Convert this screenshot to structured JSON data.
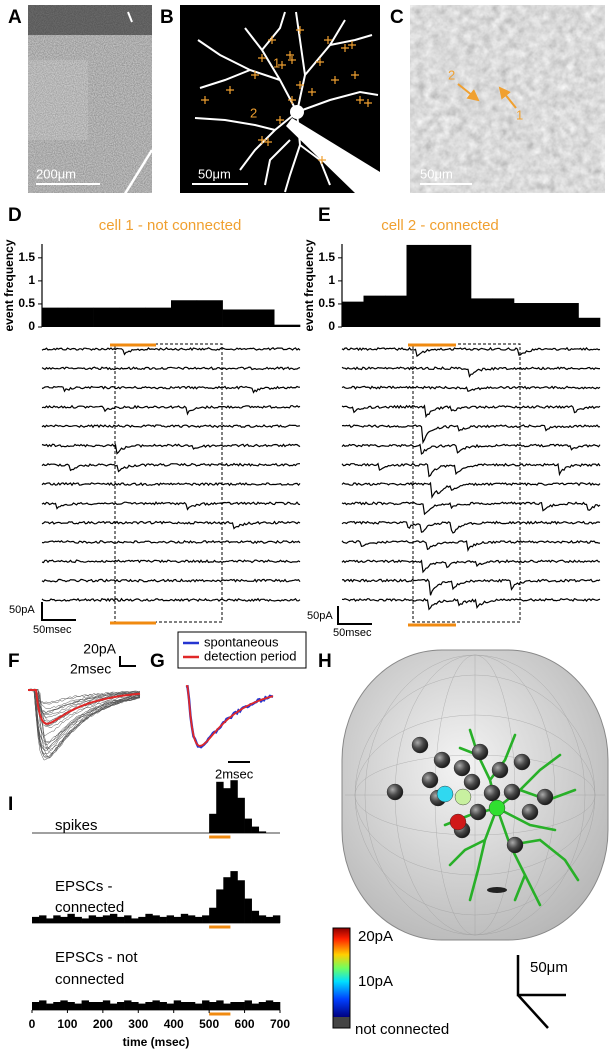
{
  "panels": {
    "A": {
      "letter": "A",
      "scale_bar": "200μm"
    },
    "B": {
      "letter": "B",
      "scale_bar": "50μm",
      "cell_labels": [
        "1",
        "2"
      ]
    },
    "C": {
      "letter": "C",
      "scale_bar": "50μm",
      "cell_labels": [
        "2",
        "1"
      ]
    },
    "D": {
      "letter": "D",
      "scale_bar": [
        "50pA",
        "50msec"
      ]
    },
    "E": {
      "letter": "E",
      "scale_bar": [
        "50pA",
        "50msec"
      ]
    },
    "F": {
      "letter": "F",
      "scale_bar": [
        "20pA",
        "2msec"
      ]
    },
    "G": {
      "letter": "G",
      "legend": [
        {
          "name": "spontaneous",
          "color": "#2535d0"
        },
        {
          "name": "detection period",
          "color": "#e02828"
        }
      ],
      "scale_bar": "2msec"
    },
    "H": {
      "letter": "H",
      "colorbar": [
        "20pA",
        "10pA",
        "not connected"
      ],
      "scale_bar": "50μm"
    },
    "I": {
      "letter": "I"
    }
  },
  "chart_data": [
    {
      "type": "bar",
      "title": "cell 1 - not connected",
      "ylabel": "event frequency",
      "categories": [
        null,
        null,
        null,
        null,
        null,
        null,
        null,
        null,
        null,
        null
      ],
      "values": [
        0.42,
        0.42,
        0.42,
        0.42,
        0.42,
        0.58,
        0.58,
        0.38,
        0.38,
        0.05
      ],
      "color": "#000000",
      "ylim": [
        0,
        1.8
      ],
      "yticks": [
        0,
        0.5,
        1,
        1.5
      ]
    },
    {
      "type": "bar",
      "title": "cell 2 - connected",
      "ylabel": "event frequency",
      "categories": [
        null,
        null,
        null,
        null,
        null,
        null,
        null,
        null,
        null,
        null,
        null,
        null
      ],
      "values": [
        0.55,
        0.68,
        0.68,
        1.78,
        1.78,
        1.78,
        0.62,
        0.62,
        0.52,
        0.52,
        0.52,
        0.2
      ],
      "color": "#000000",
      "ylim": [
        0,
        1.8
      ],
      "yticks": [
        0,
        0.5,
        1,
        1.5
      ]
    },
    {
      "type": "histogram",
      "title_lines": [
        "spikes"
      ],
      "bins": [
        0,
        20,
        40,
        60,
        80,
        100,
        120,
        140,
        160,
        180,
        200,
        220,
        240,
        260,
        280,
        300,
        320,
        340,
        360,
        380,
        400,
        420,
        440,
        460,
        480,
        500,
        520,
        540,
        560,
        580,
        600,
        620,
        640,
        660,
        680,
        700
      ],
      "values": [
        0,
        0,
        0,
        0,
        0,
        0,
        0,
        0,
        0,
        0,
        0,
        0,
        0,
        0,
        0,
        0,
        0,
        0,
        0,
        0,
        0,
        0,
        0,
        0,
        0,
        12,
        32,
        28,
        33,
        22,
        9,
        4,
        1,
        0,
        0
      ],
      "color": "#000000",
      "xlim": [
        0,
        700
      ],
      "ylim": [
        0,
        35
      ]
    },
    {
      "type": "histogram",
      "title_lines": [
        "EPSCs -",
        "connected"
      ],
      "bins": [
        0,
        20,
        40,
        60,
        80,
        100,
        120,
        140,
        160,
        180,
        200,
        220,
        240,
        260,
        280,
        300,
        320,
        340,
        360,
        380,
        400,
        420,
        440,
        460,
        480,
        500,
        520,
        540,
        560,
        580,
        600,
        620,
        640,
        660,
        680,
        700
      ],
      "values": [
        4,
        5,
        3,
        5,
        4,
        6,
        4,
        3,
        5,
        4,
        5,
        6,
        4,
        5,
        3,
        4,
        6,
        5,
        4,
        5,
        4,
        6,
        5,
        4,
        5,
        10,
        22,
        30,
        34,
        28,
        16,
        8,
        5,
        4,
        5
      ],
      "color": "#000000",
      "xlim": [
        0,
        700
      ],
      "ylim": [
        0,
        38
      ]
    },
    {
      "type": "histogram",
      "title_lines": [
        "EPSCs - not",
        "connected"
      ],
      "bins": [
        0,
        20,
        40,
        60,
        80,
        100,
        120,
        140,
        160,
        180,
        200,
        220,
        240,
        260,
        280,
        300,
        320,
        340,
        360,
        380,
        400,
        420,
        440,
        460,
        480,
        500,
        520,
        540,
        560,
        580,
        600,
        620,
        640,
        660,
        680,
        700
      ],
      "values": [
        5,
        6,
        4,
        5,
        6,
        5,
        4,
        6,
        5,
        5,
        6,
        4,
        5,
        6,
        5,
        4,
        5,
        6,
        5,
        4,
        6,
        5,
        5,
        4,
        6,
        5,
        6,
        4,
        5,
        5,
        6,
        4,
        5,
        6,
        5
      ],
      "color": "#000000",
      "xlim": [
        0,
        700
      ],
      "ylim": [
        0,
        35
      ],
      "xticks": [
        0,
        100,
        200,
        300,
        400,
        500,
        600,
        700
      ],
      "xlabel": "time (msec)"
    }
  ]
}
